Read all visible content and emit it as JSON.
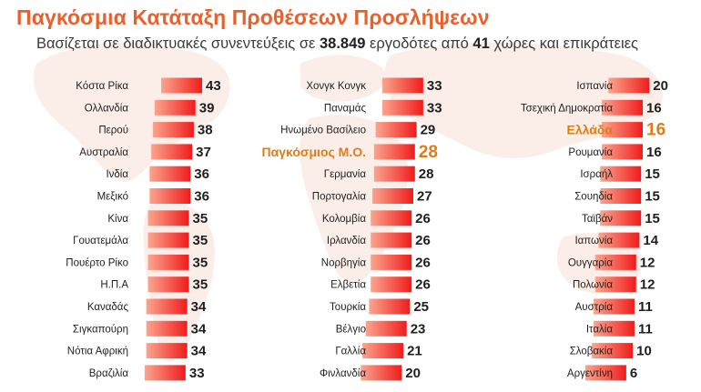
{
  "title": "Παγκόσμια Κατάταξη Προθέσεων Προσλήψεων",
  "subtitle": {
    "part1": "Βασίζεται σε διαδικτυακές συνεντεύξεις σε ",
    "employers": "38.849",
    "part2": " εργοδότες από ",
    "countries": "41",
    "part3": " χώρες και επικράτειες"
  },
  "colors": {
    "bar_start": "#fba58e",
    "bar_end": "#f01c1c",
    "highlight": "#e07d12",
    "label": "#1f1f1f",
    "title": "#e8612c",
    "map": "#fbeee9"
  },
  "chart_data": {
    "type": "bar",
    "orientation": "horizontal",
    "title": "Παγκόσμια Κατάταξη Προθέσεων Προσλήψεων",
    "highlight": [
      "Παγκόσμιος Μ.Ο.",
      "Ελλάδα"
    ],
    "columns": [
      {
        "categories": [
          "Κόστα Ρίκα",
          "Ολλανδία",
          "Περού",
          "Αυστραλία",
          "Ινδία",
          "Μεξικό",
          "Κίνα",
          "Γουατεμάλα",
          "Πουέρτο Ρίκο",
          "Η.Π.Α",
          "Καναδάς",
          "Σιγκαπούρη",
          "Νότια Αφρική",
          "Βραζιλία"
        ],
        "values": [
          43,
          39,
          38,
          37,
          36,
          36,
          35,
          35,
          35,
          35,
          34,
          34,
          34,
          33
        ]
      },
      {
        "categories": [
          "Χονγκ Κονγκ",
          "Παναμάς",
          "Ηνωμένο Βασίλειο",
          "Παγκόσμιος Μ.Ο.",
          "Γερμανία",
          "Πορτογαλία",
          "Κολομβία",
          "Ιρλανδία",
          "Νορβηγία",
          "Ελβετία",
          "Τουρκία",
          "Βέλγιο",
          "Γαλλία",
          "Φινλανδία"
        ],
        "values": [
          33,
          33,
          29,
          28,
          28,
          27,
          26,
          26,
          26,
          26,
          25,
          23,
          21,
          20
        ]
      },
      {
        "categories": [
          "Ισπανία",
          "Τσεχική Δημοκρατία",
          "Ελλάδα",
          "Ρουμανία",
          "Ισραήλ",
          "Σουηδία",
          "Ταϊβάν",
          "Ιαπωνία",
          "Ουγγαρία",
          "Πολωνία",
          "Αυστρία",
          "Ιταλία",
          "Σλοβακία",
          "Αργεντίνη"
        ],
        "values": [
          20,
          16,
          16,
          16,
          15,
          15,
          15,
          14,
          12,
          12,
          11,
          11,
          10,
          6
        ]
      }
    ]
  }
}
